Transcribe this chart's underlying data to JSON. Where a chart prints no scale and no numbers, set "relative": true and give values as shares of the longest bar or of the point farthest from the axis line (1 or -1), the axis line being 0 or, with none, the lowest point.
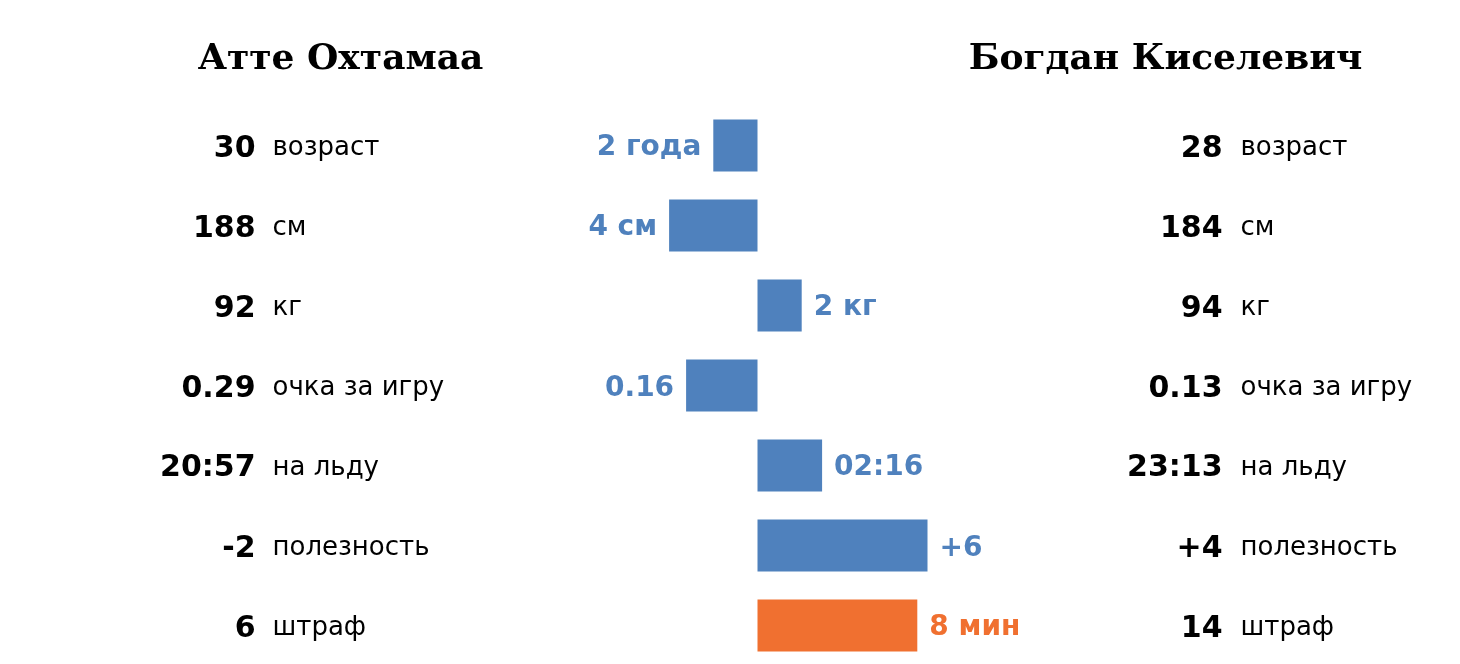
{
  "chart_data": {
    "type": "bar",
    "orientation": "horizontal",
    "relative": true,
    "categories": [
      "возраст",
      "см",
      "кг",
      "очка за игру",
      "на льду",
      "полезность",
      "штраф"
    ],
    "values": [
      -0.26,
      -0.52,
      0.26,
      -0.42,
      0.38,
      1,
      0.94
    ],
    "colors": [
      "#4f81bd",
      "#4f81bd",
      "#4f81bd",
      "#4f81bd",
      "#4f81bd",
      "#4f81bd",
      "#f07030"
    ],
    "annotations": [
      "Атте Охтамаа",
      "Богдан Киселевич",
      "30",
      "188",
      "92",
      "0.29",
      "20:57",
      "-2",
      "6",
      "28",
      "184",
      "94",
      "0.13",
      "23:13",
      "+4",
      "14",
      {
        "text": "2 года",
        "x": -0.26,
        "y": "возраст"
      },
      {
        "text": "4 см",
        "x": -0.52,
        "y": "см"
      },
      {
        "text": "2 кг",
        "x": 0.26,
        "y": "кг"
      },
      {
        "text": "0.16",
        "x": -0.42,
        "y": "очка за игру"
      },
      {
        "text": "02:16",
        "x": 0.38,
        "y": "на льду"
      },
      {
        "text": "+6",
        "x": 1,
        "y": "полезность"
      },
      {
        "text": "8 мин",
        "x": 0.94,
        "y": "штраф"
      }
    ]
  }
}
